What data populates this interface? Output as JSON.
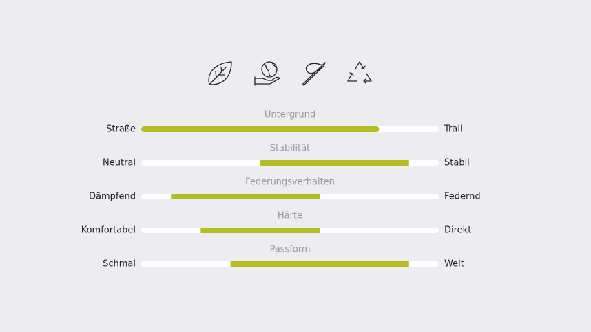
{
  "scale_lim": [
    0,
    100
  ],
  "scales": [
    {
      "title": "Untergrund",
      "left": "Straße",
      "right": "Trail",
      "range": [
        0,
        80
      ]
    },
    {
      "title": "Stabilität",
      "left": "Neutral",
      "right": "Stabil",
      "range": [
        40,
        90
      ]
    },
    {
      "title": "Federungsverhalten",
      "left": "Dämpfend",
      "right": "Federnd",
      "range": [
        10,
        60
      ]
    },
    {
      "title": "Härte",
      "left": "Komfortabel",
      "right": "Direkt",
      "range": [
        20,
        60
      ]
    },
    {
      "title": "Passform",
      "left": "Schmal",
      "right": "Weit",
      "range": [
        30,
        90
      ]
    }
  ]
}
